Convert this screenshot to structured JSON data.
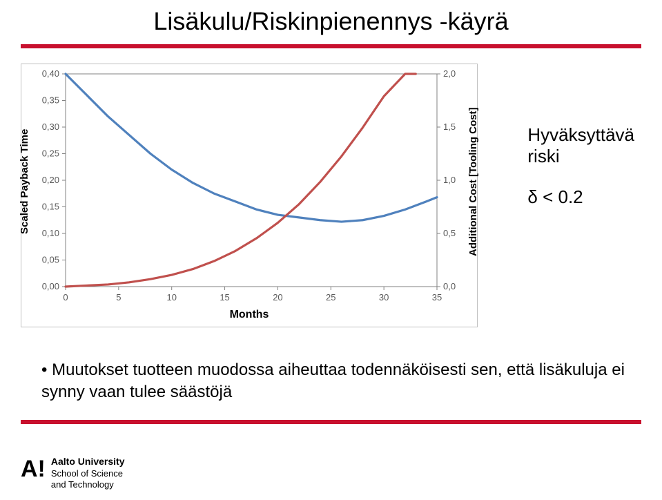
{
  "title": "Lisäkulu/Riskinpienennys -käyrä",
  "annotation": {
    "line1": "Hyväksyttävä",
    "line2": "riski",
    "delta_line": "δ < 0.2"
  },
  "bullet": "• Muutokset tuotteen muodossa aiheuttaa todennäköisesti sen, että lisäkuluja ei synny vaan tulee säästöjä",
  "footer": {
    "logo_letter": "A!",
    "line1": "Aalto University",
    "line2": "School of Science",
    "line3": "and Technology"
  },
  "chart": {
    "type": "line",
    "background_color": "#ffffff",
    "plot_border_color": "#828282",
    "tick_color": "#828282",
    "tick_label_color": "#595959",
    "label_fontsize": 15,
    "tick_fontsize": 13,
    "x_axis": {
      "label": "Months",
      "min": 0,
      "max": 35,
      "tick_step": 5,
      "ticks": [
        0,
        5,
        10,
        15,
        20,
        25,
        30,
        35
      ]
    },
    "y_left": {
      "label": "Scaled Payback Time",
      "min": 0.0,
      "max": 0.4,
      "tick_step": 0.05,
      "ticks": [
        0.0,
        0.05,
        0.1,
        0.15,
        0.2,
        0.25,
        0.3,
        0.35,
        0.4
      ],
      "tick_labels": [
        "0,00",
        "0,05",
        "0,10",
        "0,15",
        "0,20",
        "0,25",
        "0,30",
        "0,35",
        "0,40"
      ]
    },
    "y_right": {
      "label": "Additional Cost  [Tooling Cost]",
      "min": 0.0,
      "max": 2.0,
      "tick_step": 0.5,
      "ticks": [
        0.0,
        0.5,
        1.0,
        1.5,
        2.0
      ],
      "tick_labels": [
        "0,0",
        "0,5",
        "1,0",
        "1,5",
        "2,0"
      ]
    },
    "series": [
      {
        "name": "scaled_payback_time",
        "axis": "left",
        "color": "#4f81bd",
        "line_width": 3.2,
        "points": [
          [
            0,
            0.4
          ],
          [
            2,
            0.36
          ],
          [
            4,
            0.32
          ],
          [
            6,
            0.285
          ],
          [
            8,
            0.25
          ],
          [
            10,
            0.22
          ],
          [
            12,
            0.195
          ],
          [
            14,
            0.175
          ],
          [
            16,
            0.16
          ],
          [
            18,
            0.145
          ],
          [
            20,
            0.135
          ],
          [
            22,
            0.13
          ],
          [
            24,
            0.125
          ],
          [
            26,
            0.122
          ],
          [
            28,
            0.125
          ],
          [
            30,
            0.133
          ],
          [
            32,
            0.145
          ],
          [
            34,
            0.16
          ],
          [
            35,
            0.168
          ]
        ]
      },
      {
        "name": "additional_cost",
        "axis": "right",
        "color": "#c0504d",
        "line_width": 3.2,
        "points": [
          [
            0,
            0.0
          ],
          [
            2,
            0.01
          ],
          [
            4,
            0.02
          ],
          [
            6,
            0.04
          ],
          [
            8,
            0.07
          ],
          [
            10,
            0.11
          ],
          [
            12,
            0.165
          ],
          [
            14,
            0.24
          ],
          [
            16,
            0.335
          ],
          [
            18,
            0.455
          ],
          [
            20,
            0.6
          ],
          [
            22,
            0.775
          ],
          [
            24,
            0.985
          ],
          [
            26,
            1.225
          ],
          [
            28,
            1.495
          ],
          [
            30,
            1.79
          ],
          [
            32,
            2.0
          ],
          [
            33,
            2.0
          ]
        ]
      }
    ]
  }
}
